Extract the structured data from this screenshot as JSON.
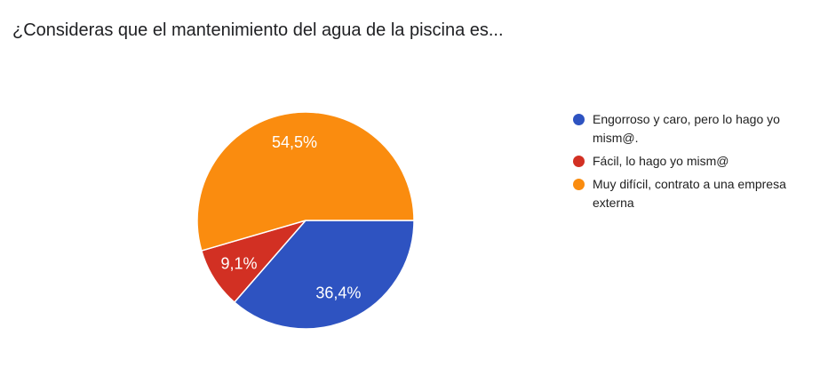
{
  "chart_data": {
    "type": "pie",
    "title": "¿Consideras que el mantenimiento del agua de la piscina es...",
    "legend_position": "right",
    "start_angle_deg": 0,
    "direction": "clockwise",
    "decimal_separator": ",",
    "slice_label_color": "#ffffff",
    "slice_border_color": "#ffffff",
    "background_color": "#ffffff",
    "title_color": "#202124",
    "legend_text_color": "#212121",
    "slices": [
      {
        "label": "Engorroso y caro, pero lo hago yo mism@.",
        "value": 36.4,
        "display_value": "36,4%",
        "color": "#2e53c1"
      },
      {
        "label": "Fácil, lo hago yo mism@",
        "value": 9.1,
        "display_value": "9,1%",
        "color": "#d23023"
      },
      {
        "label": "Muy difícil, contrato a una empresa externa",
        "value": 54.5,
        "display_value": "54,5%",
        "color": "#fa8c0f"
      }
    ]
  }
}
